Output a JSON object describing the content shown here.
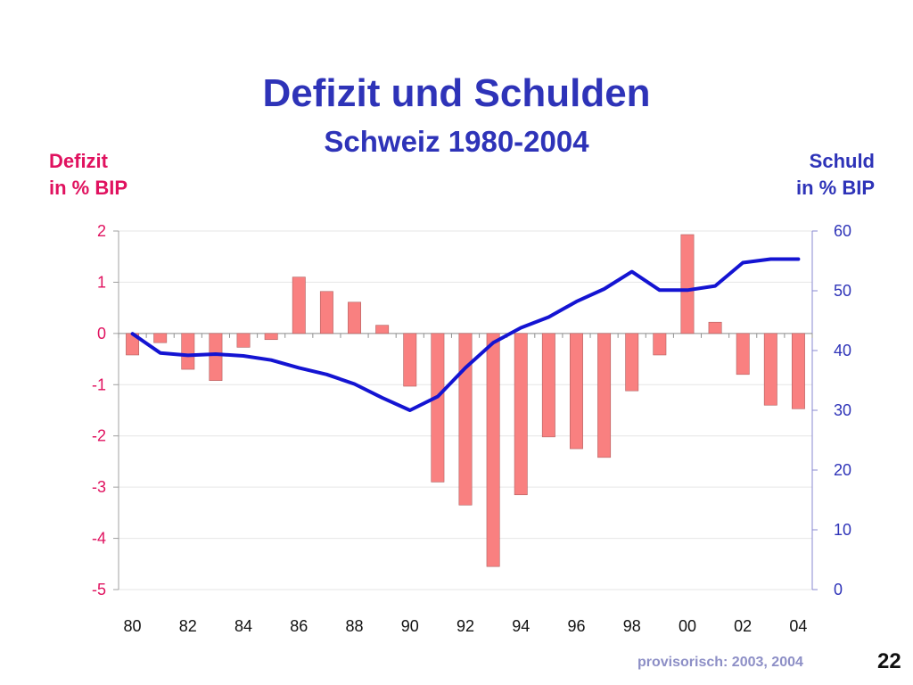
{
  "slide": {
    "title": "Defizit und Schulden",
    "subtitle": "Schweiz 1980-2004",
    "footnote": "provisorisch: 2003, 2004",
    "page_number": "22"
  },
  "chart_data": {
    "type": "bar",
    "title": "Defizit und Schulden",
    "subtitle": "Schweiz 1980-2004",
    "ylabel_left": [
      "Defizit",
      "in % BIP"
    ],
    "ylabel_right": [
      "Schuld",
      "in % BIP"
    ],
    "x": [
      1980,
      1981,
      1982,
      1983,
      1984,
      1985,
      1986,
      1987,
      1988,
      1989,
      1990,
      1991,
      1992,
      1993,
      1994,
      1995,
      1996,
      1997,
      1998,
      1999,
      2000,
      2001,
      2002,
      2003,
      2004
    ],
    "xtick_labels": [
      "80",
      "82",
      "84",
      "86",
      "88",
      "90",
      "92",
      "94",
      "96",
      "98",
      "00",
      "02",
      "04"
    ],
    "ylim_left": [
      -5,
      2
    ],
    "yticks_left": [
      2,
      1,
      0,
      -1,
      -2,
      -3,
      -4,
      -5
    ],
    "ylim_right": [
      0,
      60
    ],
    "yticks_right": [
      60,
      50,
      40,
      30,
      20,
      10,
      0
    ],
    "grid": true,
    "series": [
      {
        "name": "Defizit",
        "type": "bar",
        "axis": "left",
        "color": "#f98080",
        "values": [
          -0.42,
          -0.18,
          -0.7,
          -0.92,
          -0.27,
          -0.12,
          1.1,
          0.82,
          0.61,
          0.16,
          -1.03,
          -2.9,
          -3.35,
          -4.55,
          -3.15,
          -2.02,
          -2.25,
          -2.42,
          -1.12,
          -0.42,
          1.93,
          0.22,
          -0.8,
          -1.4,
          -1.47
        ]
      },
      {
        "name": "Schuld",
        "type": "line",
        "axis": "right",
        "color": "#1414d2",
        "values": [
          42.8,
          39.6,
          39.2,
          39.4,
          39.1,
          38.4,
          37.1,
          36.0,
          34.4,
          32.1,
          30.0,
          32.3,
          37.1,
          41.3,
          43.8,
          45.6,
          48.2,
          50.3,
          53.2,
          50.1,
          50.1,
          50.8,
          54.7,
          55.3,
          55.3
        ]
      }
    ]
  }
}
